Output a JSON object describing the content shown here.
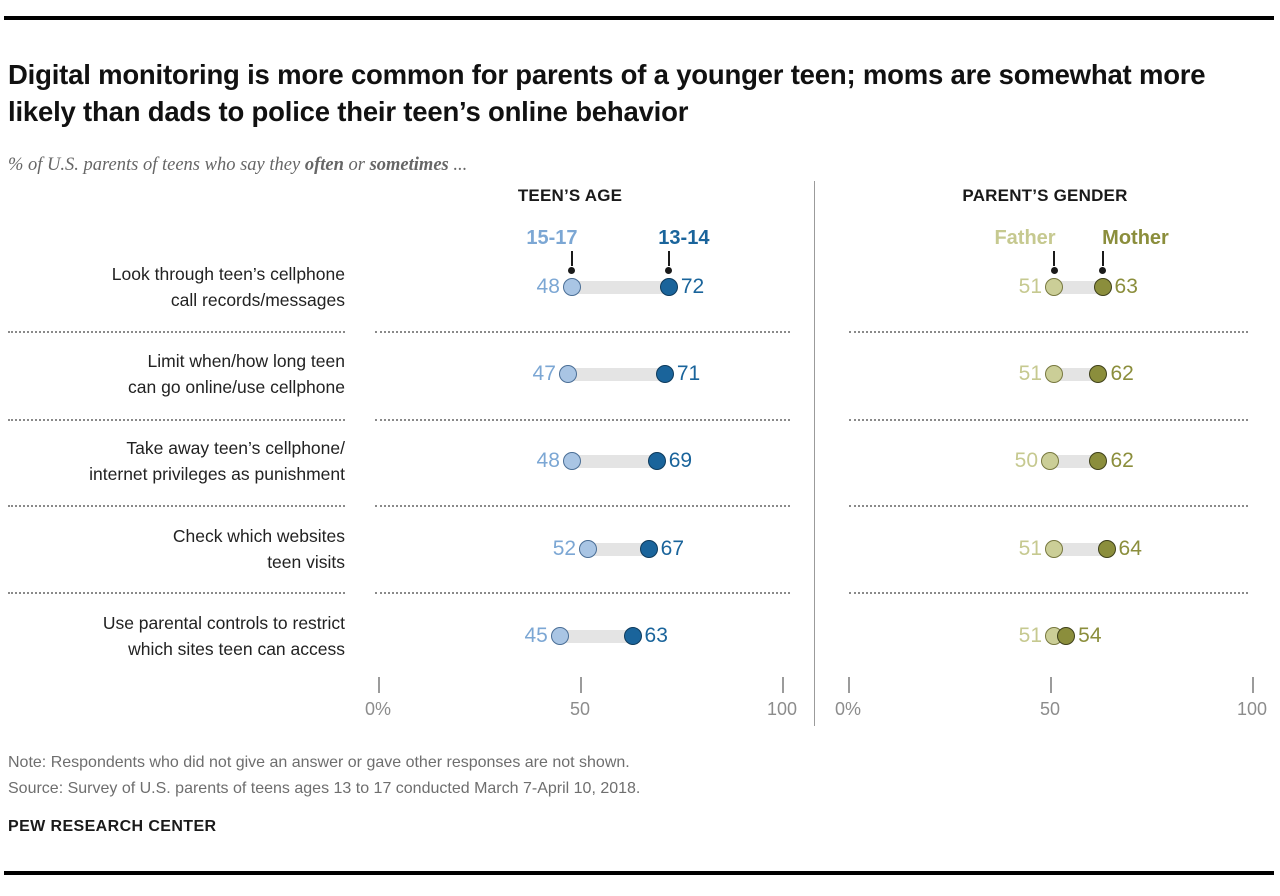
{
  "header": {
    "title": "Digital monitoring is more common for parents of a younger teen; moms are somewhat more likely than dads to police their teen’s online behavior",
    "subtitle": {
      "prefix": "% of U.S. parents of teens who say they ",
      "bold1": "often",
      "mid": " or ",
      "bold2": "sometimes",
      "suffix": " ..."
    }
  },
  "chart_data": {
    "type": "dumbbell-dot-plot",
    "panels": [
      {
        "id": "teens_age",
        "title": "TEEN’S AGE",
        "series": [
          {
            "name": "15-17",
            "role": "low"
          },
          {
            "name": "13-14",
            "role": "high"
          }
        ],
        "axis": {
          "range": [
            0,
            100
          ],
          "ticks": [
            {
              "label": "0%",
              "value": 0
            },
            {
              "label": "50",
              "value": 50
            },
            {
              "label": "100",
              "value": 100
            }
          ]
        }
      },
      {
        "id": "parent_gender",
        "title": "PARENT’S GENDER",
        "series": [
          {
            "name": "Father",
            "role": "low"
          },
          {
            "name": "Mother",
            "role": "high"
          }
        ],
        "axis": {
          "range": [
            0,
            100
          ],
          "ticks": [
            {
              "label": "0%",
              "value": 0
            },
            {
              "label": "50",
              "value": 50
            },
            {
              "label": "100",
              "value": 100
            }
          ]
        }
      }
    ],
    "rows": [
      {
        "label_lines": [
          "Look through teen’s cellphone",
          "call records/messages"
        ],
        "values": {
          "teens_age": {
            "low": 48,
            "high": 72
          },
          "parent_gender": {
            "low": 51,
            "high": 63
          }
        }
      },
      {
        "label_lines": [
          "Limit when/how long teen",
          "can go online/use cellphone"
        ],
        "values": {
          "teens_age": {
            "low": 47,
            "high": 71
          },
          "parent_gender": {
            "low": 51,
            "high": 62
          }
        }
      },
      {
        "label_lines": [
          "Take away teen’s cellphone/",
          "internet privileges as punishment"
        ],
        "values": {
          "teens_age": {
            "low": 48,
            "high": 69
          },
          "parent_gender": {
            "low": 50,
            "high": 62
          }
        }
      },
      {
        "label_lines": [
          "Check which websites",
          "teen visits"
        ],
        "values": {
          "teens_age": {
            "low": 52,
            "high": 67
          },
          "parent_gender": {
            "low": 51,
            "high": 64
          }
        }
      },
      {
        "label_lines": [
          "Use parental controls to restrict",
          "which sites teen can access"
        ],
        "values": {
          "teens_age": {
            "low": 45,
            "high": 63
          },
          "parent_gender": {
            "low": 51,
            "high": 54
          }
        }
      }
    ],
    "colors": {
      "teens_age_low_text": "#7CA7D4",
      "teens_age_low_fill": "#A9C5E4",
      "teens_age_low_border": "#4A6E96",
      "teens_age_high_text": "#1A649B",
      "teens_age_high_fill": "#1A649B",
      "teens_age_high_border": "#0D3A5C",
      "parent_gender_low_text": "#C6C990",
      "parent_gender_low_fill": "#CBCE97",
      "parent_gender_low_border": "#77783F",
      "parent_gender_high_text": "#8B8E3C",
      "parent_gender_high_fill": "#8B8E3C",
      "parent_gender_high_border": "#3F411A",
      "connector": "#E4E4E4"
    },
    "legend_note": "legend arrows point to first-row dots"
  },
  "footer": {
    "note": "Note: Respondents who did not give an answer or gave other responses are not shown.",
    "source": "Source: Survey of U.S. parents of teens ages 13 to 17 conducted March 7-April 10, 2018.",
    "brand": "PEW RESEARCH CENTER"
  }
}
